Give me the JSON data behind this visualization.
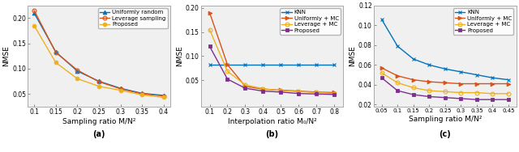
{
  "subplot_a": {
    "xlabel": "Sampling ratio M/N²",
    "ylabel": "NMSE",
    "label": "(a)",
    "x": [
      0.1,
      0.15,
      0.2,
      0.25,
      0.3,
      0.35,
      0.4
    ],
    "uniform_random": [
      0.21,
      0.133,
      0.095,
      0.075,
      0.061,
      0.051,
      0.047
    ],
    "leverage_sampling": [
      0.215,
      0.132,
      0.097,
      0.074,
      0.06,
      0.05,
      0.046
    ],
    "proposed": [
      0.185,
      0.112,
      0.08,
      0.065,
      0.057,
      0.048,
      0.043
    ],
    "ylim": [
      0.025,
      0.225
    ],
    "yticks": [
      0.05,
      0.1,
      0.15,
      0.2
    ],
    "xlim": [
      0.085,
      0.415
    ]
  },
  "subplot_b": {
    "xlabel": "Interpolation ratio M₀/N²",
    "ylabel": "NMSE",
    "label": "(b)",
    "x": [
      0.1,
      0.2,
      0.3,
      0.4,
      0.5,
      0.6,
      0.7,
      0.8
    ],
    "knn": [
      0.082,
      0.082,
      0.082,
      0.082,
      0.082,
      0.082,
      0.082,
      0.082
    ],
    "uniformly_mc": [
      0.19,
      0.082,
      0.037,
      0.031,
      0.029,
      0.027,
      0.025,
      0.024
    ],
    "leverage_mc": [
      0.155,
      0.068,
      0.04,
      0.032,
      0.028,
      0.026,
      0.024,
      0.022
    ],
    "proposed": [
      0.12,
      0.052,
      0.033,
      0.027,
      0.025,
      0.022,
      0.021,
      0.02
    ],
    "ylim": [
      -0.005,
      0.205
    ],
    "yticks": [
      0.05,
      0.1,
      0.15,
      0.2
    ],
    "xlim": [
      0.05,
      0.85
    ]
  },
  "subplot_c": {
    "xlabel": "Sampling ratio M/N²",
    "ylabel": "NMSE",
    "label": "(c)",
    "x": [
      0.05,
      0.1,
      0.15,
      0.2,
      0.25,
      0.3,
      0.35,
      0.4,
      0.45
    ],
    "knn": [
      0.106,
      0.079,
      0.066,
      0.06,
      0.056,
      0.053,
      0.05,
      0.047,
      0.045
    ],
    "uniformly_mc": [
      0.057,
      0.049,
      0.045,
      0.043,
      0.042,
      0.041,
      0.041,
      0.041,
      0.041
    ],
    "leverage_mc": [
      0.052,
      0.042,
      0.037,
      0.034,
      0.033,
      0.032,
      0.032,
      0.031,
      0.031
    ],
    "proposed": [
      0.047,
      0.034,
      0.03,
      0.028,
      0.027,
      0.026,
      0.025,
      0.025,
      0.025
    ],
    "ylim": [
      0.018,
      0.118
    ],
    "yticks": [
      0.02,
      0.04,
      0.06,
      0.08,
      0.1,
      0.12
    ],
    "xlim": [
      0.025,
      0.475
    ]
  },
  "colors": {
    "blue": "#0072BD",
    "orange": "#D95319",
    "yellow": "#EDB120",
    "purple": "#7E2F8E"
  },
  "bg": "#F0F0F0"
}
